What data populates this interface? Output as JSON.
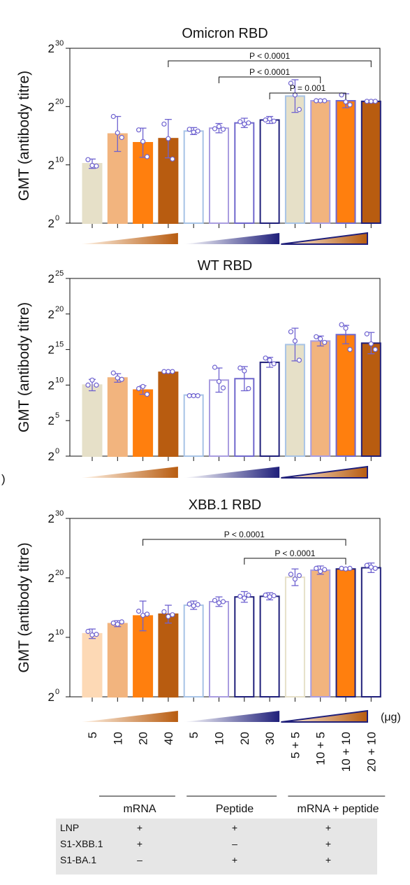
{
  "stray_label": ")",
  "colors": {
    "beige": "#e6e0c8",
    "light_orange": "#f2b47e",
    "orange": "#ff7f0e",
    "brown": "#b85c10",
    "peach": "#fdd9b5",
    "white": "#ffffff",
    "pale_blue": "#a7c3e6",
    "lavender": "#a99de0",
    "periwinkle": "#6f67cc",
    "navy": "#1f1f7a",
    "dot": "#6e62d0",
    "gradient_orange_start": "#fff3e6",
    "gradient_orange_end": "#b85c10",
    "gradient_blue_start": "#ffffff",
    "gradient_blue_end": "#1f1f7a"
  },
  "chart_data": [
    {
      "type": "bar",
      "title": "Omicron RBD",
      "ylabel": "GMT (antibody titre)",
      "log_base": 2,
      "ylim_exponent": [
        0,
        30
      ],
      "y_ticks": [
        {
          "base": "2",
          "exp": "0",
          "v": 0
        },
        {
          "base": "2",
          "exp": "10",
          "v": 10
        },
        {
          "base": "2",
          "exp": "20",
          "v": 20
        },
        {
          "base": "2",
          "exp": "30",
          "v": 30
        }
      ],
      "values_log2": [
        10.2,
        15.3,
        13.8,
        14.5,
        15.8,
        16.3,
        17.2,
        17.7,
        21.8,
        21.0,
        21.0,
        20.9
      ],
      "errors_log2": [
        0.8,
        3.0,
        2.5,
        3.3,
        0.6,
        0.8,
        0.8,
        0.6,
        2.8,
        0.2,
        1.2,
        0.2
      ],
      "points_log2": [
        [
          10.9,
          9.9,
          9.8
        ],
        [
          18.3,
          15.5,
          14.7
        ],
        [
          16.0,
          14.0,
          11.4
        ],
        [
          17.0,
          14.5,
          11.0
        ],
        [
          16.1,
          15.6,
          15.8
        ],
        [
          16.2,
          16.6,
          16.1
        ],
        [
          17.4,
          17.0,
          17.2
        ],
        [
          17.7,
          17.9,
          17.5
        ],
        [
          24.0,
          22.0,
          19.5
        ],
        [
          21.0,
          21.0,
          21.0
        ],
        [
          22.0,
          20.8,
          20.3
        ],
        [
          20.9,
          20.9,
          20.9
        ]
      ],
      "fills": [
        "beige",
        "light_orange",
        "orange",
        "brown",
        "white",
        "white",
        "white",
        "white",
        "beige",
        "light_orange",
        "orange",
        "brown"
      ],
      "strokes": [
        "beige",
        "light_orange",
        "orange",
        "brown",
        "pale_blue",
        "lavender",
        "periwinkle",
        "navy",
        "pale_blue",
        "lavender",
        "periwinkle",
        "navy"
      ],
      "comparisons": [
        {
          "from": 3,
          "to": 11,
          "label": "P < 0.0001",
          "level": 3
        },
        {
          "from": 5,
          "to": 9,
          "label": "P < 0.0001",
          "level": 2
        },
        {
          "from": 7,
          "to": 10,
          "label": "P = 0.001",
          "level": 1
        }
      ]
    },
    {
      "type": "bar",
      "title": "WT RBD",
      "ylabel": "GMT (antibody titre)",
      "log_base": 2,
      "ylim_exponent": [
        0,
        25
      ],
      "y_ticks": [
        {
          "base": "2",
          "exp": "0",
          "v": 0
        },
        {
          "base": "2",
          "exp": "5",
          "v": 5
        },
        {
          "base": "2",
          "exp": "10",
          "v": 10
        },
        {
          "base": "2",
          "exp": "15",
          "v": 15
        },
        {
          "base": "2",
          "exp": "20",
          "v": 20
        },
        {
          "base": "2",
          "exp": "25",
          "v": 25
        }
      ],
      "values_log2": [
        10.0,
        11.0,
        9.3,
        11.8,
        8.6,
        10.7,
        10.9,
        13.2,
        15.7,
        16.2,
        17.1,
        15.9
      ],
      "errors_log2": [
        0.8,
        0.6,
        0.6,
        0.1,
        0.1,
        1.7,
        1.7,
        0.7,
        2.3,
        0.7,
        1.3,
        1.5
      ],
      "points_log2": [
        [
          10.0,
          10.7,
          10.0
        ],
        [
          11.7,
          11.0,
          10.8
        ],
        [
          9.5,
          9.8,
          8.7
        ],
        [
          11.9,
          11.9,
          11.9
        ],
        [
          8.5,
          8.5,
          8.5
        ],
        [
          12.5,
          10.5,
          9.6
        ],
        [
          12.4,
          12.0,
          9.5
        ],
        [
          13.8,
          13.5,
          13.0
        ],
        [
          17.5,
          16.2,
          13.5
        ],
        [
          16.8,
          16.5,
          16.0
        ],
        [
          18.5,
          18.0,
          15.0
        ],
        [
          17.2,
          15.8,
          15.0
        ]
      ],
      "fills": [
        "beige",
        "light_orange",
        "orange",
        "brown",
        "white",
        "white",
        "white",
        "white",
        "beige",
        "light_orange",
        "orange",
        "brown"
      ],
      "strokes": [
        "beige",
        "light_orange",
        "orange",
        "brown",
        "pale_blue",
        "lavender",
        "periwinkle",
        "navy",
        "pale_blue",
        "lavender",
        "periwinkle",
        "navy"
      ],
      "comparisons": []
    },
    {
      "type": "bar",
      "title": "XBB.1 RBD",
      "ylabel": "GMT (antibody titre)",
      "log_base": 2,
      "ylim_exponent": [
        0,
        30
      ],
      "y_ticks": [
        {
          "base": "2",
          "exp": "0",
          "v": 0
        },
        {
          "base": "2",
          "exp": "10",
          "v": 10
        },
        {
          "base": "2",
          "exp": "20",
          "v": 20
        },
        {
          "base": "2",
          "exp": "30",
          "v": 30
        }
      ],
      "values_log2": [
        10.6,
        12.3,
        13.6,
        13.9,
        15.4,
        16.0,
        16.8,
        16.9,
        20.1,
        21.3,
        21.5,
        21.7
      ],
      "errors_log2": [
        0.8,
        0.5,
        2.5,
        1.5,
        0.7,
        0.8,
        0.9,
        0.6,
        1.4,
        0.7,
        0.2,
        0.8
      ],
      "points_log2": [
        [
          11.0,
          10.4,
          10.5
        ],
        [
          12.4,
          12.2,
          12.6
        ],
        [
          14.4,
          13.7,
          13.9
        ],
        [
          14.3,
          13.5,
          13.8
        ],
        [
          15.6,
          15.3,
          15.5
        ],
        [
          16.2,
          15.8,
          16.0
        ],
        [
          16.9,
          16.6,
          17.1
        ],
        [
          17.1,
          16.8,
          17.0
        ],
        [
          20.6,
          19.8,
          20.4
        ],
        [
          21.6,
          21.1,
          21.4
        ],
        [
          21.6,
          21.5,
          21.6
        ],
        [
          22.1,
          21.8,
          21.6
        ]
      ],
      "fills": [
        "peach",
        "light_orange",
        "orange",
        "brown",
        "white",
        "white",
        "white",
        "white",
        "white",
        "light_orange",
        "orange",
        "white"
      ],
      "strokes": [
        "peach",
        "light_orange",
        "orange",
        "brown",
        "pale_blue",
        "lavender",
        "navy",
        "navy",
        "beige",
        "lavender",
        "navy",
        "navy"
      ],
      "comparisons": [
        {
          "from": 2,
          "to": 10,
          "label": "P < 0.0001",
          "level": 2
        },
        {
          "from": 6,
          "to": 10,
          "label": "P < 0.0001",
          "level": 1
        }
      ]
    }
  ],
  "dose_unit": "(μg)",
  "doses": [
    "5",
    "10",
    "20",
    "40",
    "5",
    "10",
    "20",
    "30",
    "5 + 5",
    "10 + 5",
    "10 + 10",
    "20 + 10"
  ],
  "groups": [
    {
      "label": "mRNA",
      "from": 0,
      "to": 3
    },
    {
      "label": "Peptide",
      "from": 4,
      "to": 7
    },
    {
      "label": "mRNA + peptide",
      "from": 8,
      "to": 11
    }
  ],
  "table": {
    "rows": [
      {
        "label": "LNP",
        "cells": [
          "+",
          "+",
          "+"
        ]
      },
      {
        "label": "S1-XBB.1",
        "cells": [
          "+",
          "–",
          "+"
        ]
      },
      {
        "label": "S1-BA.1",
        "cells": [
          "–",
          "+",
          "+"
        ]
      }
    ]
  }
}
